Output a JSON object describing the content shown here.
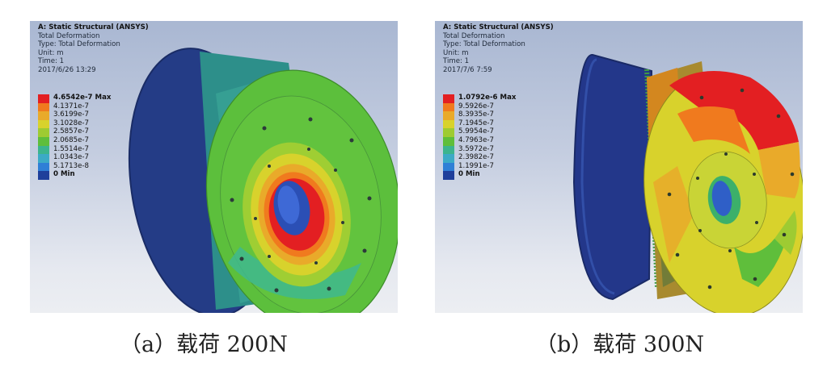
{
  "panels": [
    {
      "header": {
        "title": "A: Static Structural (ANSYS)",
        "result": "Total Deformation",
        "type": "Type: Total Deformation",
        "unit": "Unit: m",
        "time": "Time: 1",
        "date": "2017/6/26 13:29"
      },
      "legend": [
        "4.6542e-7 Max",
        "4.1371e-7",
        "3.6199e-7",
        "3.1028e-7",
        "2.5857e-7",
        "2.0685e-7",
        "1.5514e-7",
        "1.0343e-7",
        "5.1713e-8",
        "0 Min"
      ],
      "caption": "（a）载荷 200N"
    },
    {
      "header": {
        "title": "A: Static Structural (ANSYS)",
        "result": "Total Deformation",
        "type": "Type: Total Deformation",
        "unit": "Unit: m",
        "time": "Time: 1",
        "date": "2017/7/6 7:59"
      },
      "legend": [
        "1.0792e-6 Max",
        "9.5926e-7",
        "8.3935e-7",
        "7.1945e-7",
        "5.9954e-7",
        "4.7963e-7",
        "3.5972e-7",
        "2.3982e-7",
        "1.1991e-7",
        "0 Min"
      ],
      "caption": "（b）载荷 300N"
    }
  ],
  "colors": {
    "contour_scale": [
      "#e31f22",
      "#f07a1e",
      "#e9aa2a",
      "#d8d22c",
      "#9ecb32",
      "#5fbe3b",
      "#3cb48e",
      "#3caac6",
      "#2f7fd6",
      "#1f3f9b"
    ],
    "background_top": "#a9b7d2",
    "background_bottom": "#eceef2"
  }
}
